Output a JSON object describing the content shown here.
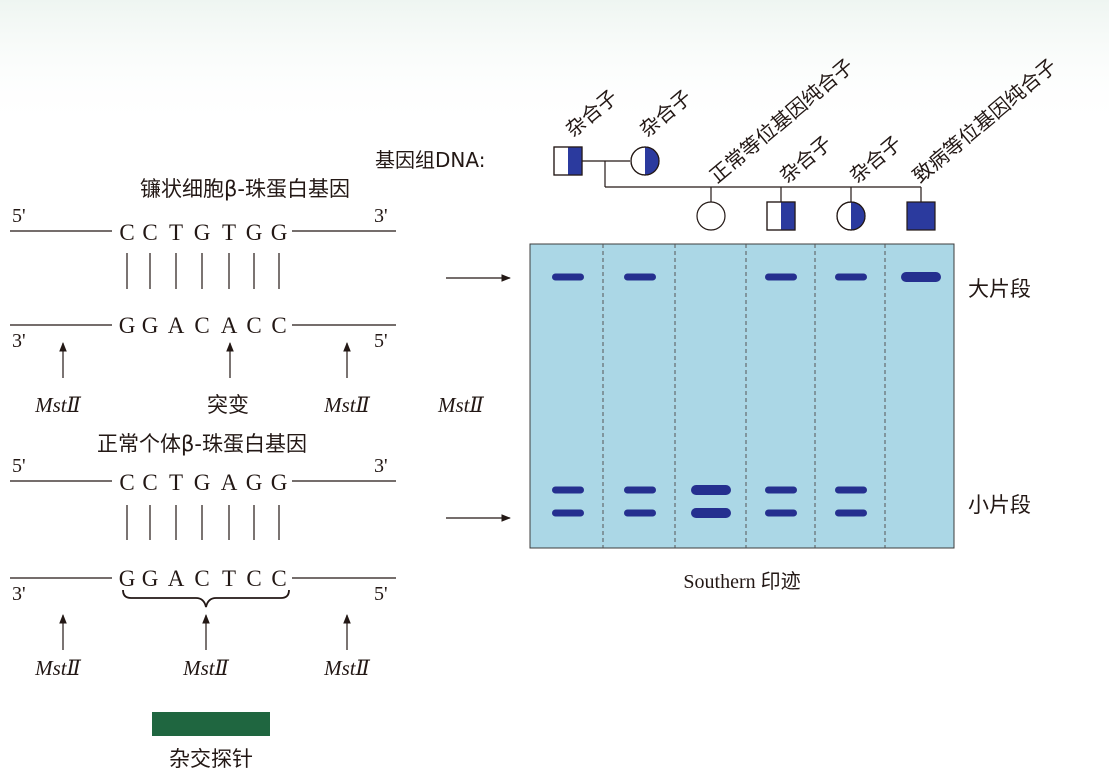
{
  "colors": {
    "gel": "#abd7e6",
    "band": "#252f8f",
    "symbol_fill": "#2b3a9e",
    "mutation_red": "#e1251b",
    "probe_green": "#1f6640",
    "ink": "#231815"
  },
  "sickle": {
    "title": "镰状细胞β-珠蛋白基因",
    "top_5": "5'",
    "top_3": "3'",
    "top_seq": [
      "C",
      "C",
      "T",
      "G",
      "T",
      "G",
      "G"
    ],
    "bottom_3": "3'",
    "bottom_5": "5'",
    "bottom_seq": [
      "G",
      "G",
      "A",
      "C",
      "A",
      "C",
      "C"
    ],
    "mutation_index": 4,
    "arrow_left_label": "MstⅡ",
    "arrow_mid_label": "突变",
    "arrow_right_label": "MstⅡ"
  },
  "normal": {
    "title": "正常个体β-珠蛋白基因",
    "top_5": "5'",
    "top_3": "3'",
    "top_seq": [
      "C",
      "C",
      "T",
      "G",
      "A",
      "G",
      "G"
    ],
    "bottom_3": "3'",
    "bottom_5": "5'",
    "bottom_seq": [
      "G",
      "G",
      "A",
      "C",
      "T",
      "C",
      "C"
    ],
    "mutation_index": 4,
    "arrow_left_label": "MstⅡ",
    "arrow_mid_label": "MstⅡ",
    "arrow_right_label": "MstⅡ"
  },
  "probe": {
    "label": "杂交探针"
  },
  "pedigree": {
    "dna_label": "基因组DNA:",
    "lane_labels": [
      "杂合子",
      "杂合子",
      "正常等位基因纯合子",
      "杂合子",
      "杂合子",
      "致病等位基因纯合子"
    ]
  },
  "gel": {
    "enzyme_label": "MstⅡ",
    "large_label": "大片段",
    "small_label": "小片段",
    "caption": "Southern 印迹",
    "lanes": [
      {
        "large": true,
        "small": true,
        "large_thick": false,
        "small_thick": false
      },
      {
        "large": true,
        "small": true,
        "large_thick": false,
        "small_thick": false
      },
      {
        "large": false,
        "small": true,
        "large_thick": false,
        "small_thick": true
      },
      {
        "large": true,
        "small": true,
        "large_thick": false,
        "small_thick": false
      },
      {
        "large": true,
        "small": true,
        "large_thick": false,
        "small_thick": false
      },
      {
        "large": true,
        "small": false,
        "large_thick": true,
        "small_thick": false
      }
    ]
  }
}
